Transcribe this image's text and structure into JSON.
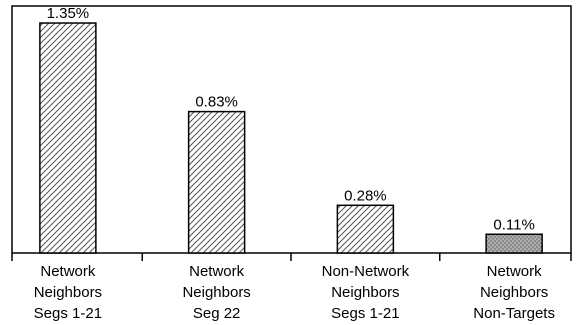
{
  "chart_data": {
    "type": "bar",
    "title": "",
    "xlabel": "",
    "ylabel": "",
    "categories": [
      [
        "Network",
        "Neighbors",
        "Segs 1-21"
      ],
      [
        "Network",
        "Neighbors",
        "Seg 22"
      ],
      [
        "Non-Network",
        "Neighbors",
        "Segs 1-21"
      ],
      [
        "Network",
        "Neighbors",
        "Non-Targets"
      ]
    ],
    "values": [
      1.35,
      0.83,
      0.28,
      0.11
    ],
    "value_labels": [
      "1.35%",
      "0.83%",
      "0.28%",
      "0.11%"
    ],
    "patterns": [
      "diagonal-hatch",
      "diagonal-hatch",
      "diagonal-hatch",
      "dots"
    ],
    "pattern_colors": {
      "hatch_fill": "#ffffff",
      "hatch_line": "#555555",
      "dots_fill": "#8a8a8a",
      "dots_color": "#d8d8d8",
      "stroke": "#000000"
    },
    "ylim": [
      0,
      1.45
    ],
    "grid": false,
    "legend": "none"
  }
}
